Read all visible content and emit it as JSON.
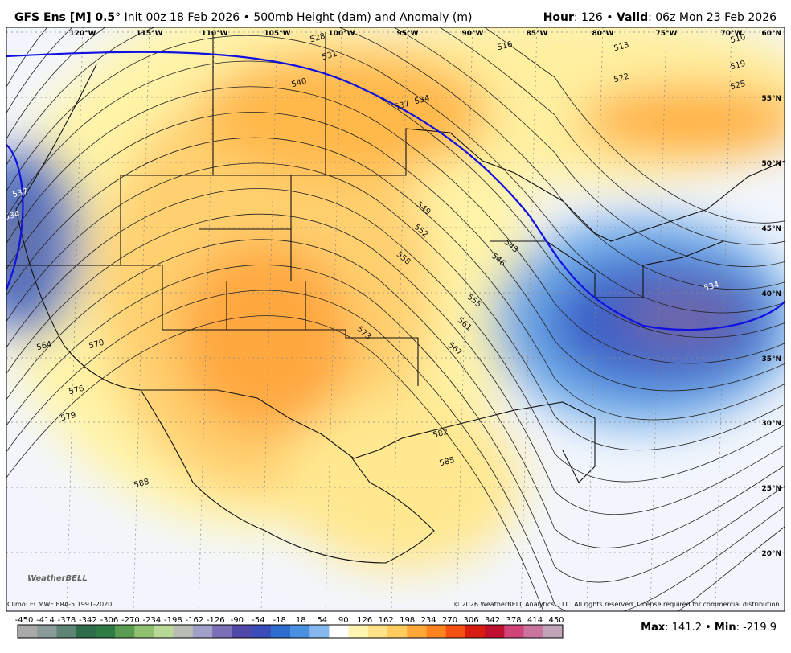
{
  "header": {
    "left": [
      {
        "text": "GFS Ens [M] 0.5",
        "bold": true
      },
      {
        "text": "° Init 00z 18 Feb 2026 • 500mb Height (dam) and Anomaly (m)",
        "bold": false
      }
    ],
    "right": [
      {
        "text": "Hour",
        "bold": true
      },
      {
        "text": ": 126 • ",
        "bold": false
      },
      {
        "text": "Valid",
        "bold": true
      },
      {
        "text": ": 06z Mon 23 Feb 2026",
        "bold": false
      }
    ]
  },
  "map": {
    "longitudes": [
      "120°W",
      "115°W",
      "110°W",
      "105°W",
      "100°W",
      "95°W",
      "90°W",
      "85°W",
      "80°W",
      "75°W",
      "70°W"
    ],
    "latitudes": [
      "60°N",
      "55°N",
      "50°N",
      "45°N",
      "40°N",
      "35°N",
      "30°N",
      "25°N",
      "20°N"
    ],
    "contour_labels": [
      528,
      531,
      516,
      513,
      510,
      519,
      522,
      525,
      540,
      534,
      537,
      549,
      552,
      558,
      543,
      546,
      555,
      561,
      567,
      573,
      570,
      564,
      576,
      579,
      582,
      585,
      588,
      537,
      534,
      534
    ],
    "logo": "WeatherBELL",
    "climo": "Climo: ECMWF ERA-5 1991-2020",
    "copyright": "© 2026 WeatherBELL Analytics, LLC. All rights reserved. License required for commercial distribution."
  },
  "colorbar": {
    "ticks": [
      -450,
      -414,
      -378,
      -342,
      -306,
      -270,
      -234,
      -198,
      -162,
      -126,
      -90,
      -54,
      -18,
      18,
      54,
      90,
      126,
      162,
      198,
      234,
      270,
      306,
      342,
      378,
      414,
      450
    ],
    "colors": [
      "#a9a9a9",
      "#8a9a98",
      "#5e8474",
      "#2f6c4c",
      "#2e7c44",
      "#5a9c52",
      "#8fc070",
      "#b8d898",
      "#b8bcb4",
      "#a0a0c8",
      "#7a70b8",
      "#5048a8",
      "#3a4cb8",
      "#2f6cd0",
      "#4a90e0",
      "#86b8f0",
      "#ffffff",
      "#fff4b0",
      "#ffe288",
      "#ffcc60",
      "#ffa838",
      "#ff8420",
      "#f45010",
      "#d81c10",
      "#c01030",
      "#d04478",
      "#c8749c",
      "#c0a4b8"
    ]
  },
  "footer": [
    {
      "text": "Max",
      "bold": true
    },
    {
      "text": ": 141.2 • ",
      "bold": false
    },
    {
      "text": "Min",
      "bold": true
    },
    {
      "text": ": -219.9",
      "bold": false
    }
  ]
}
